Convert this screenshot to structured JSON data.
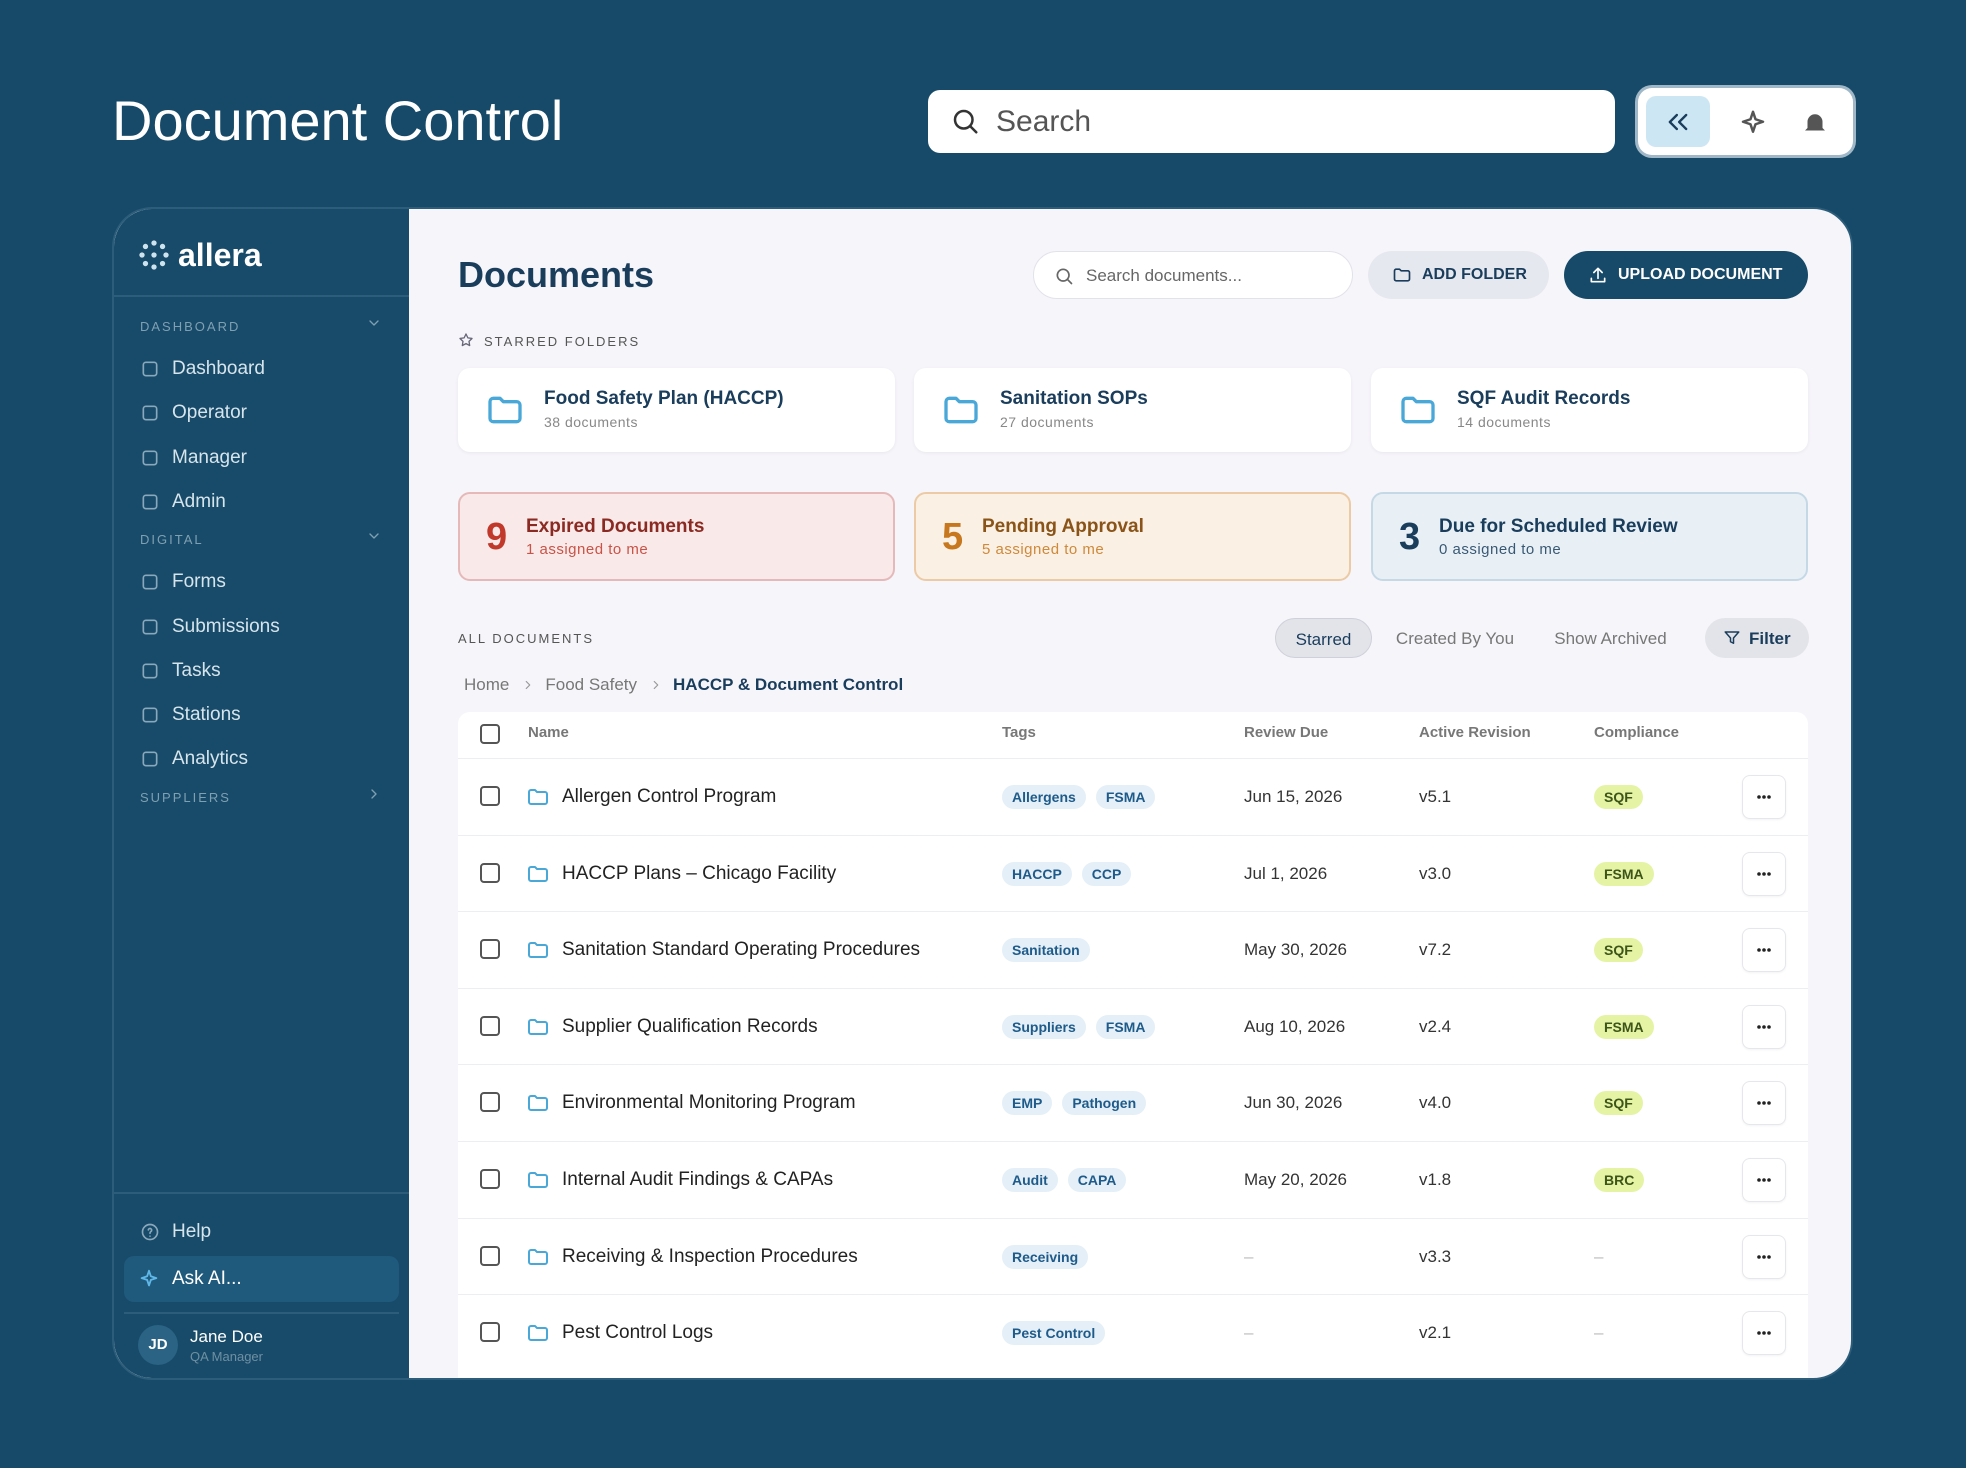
{
  "header": {
    "title": "Document Control",
    "search_placeholder": "Search"
  },
  "sidebar": {
    "brand": "allera",
    "sections": [
      {
        "label": "DASHBOARD",
        "items": [
          "Dashboard",
          "Operator",
          "Manager",
          "Admin"
        ]
      },
      {
        "label": "DIGITAL",
        "items": [
          "Forms",
          "Submissions",
          "Tasks",
          "Stations",
          "Analytics"
        ]
      },
      {
        "label": "SUPPLIERS",
        "items": []
      }
    ],
    "help": "Help",
    "ask_ai": "Ask AI...",
    "user": {
      "initials": "JD",
      "name": "Jane Doe",
      "role": "QA Manager"
    }
  },
  "main": {
    "title": "Documents",
    "search_placeholder": "Search documents...",
    "add_folder": "ADD FOLDER",
    "upload": "UPLOAD DOCUMENT",
    "starred_label": "STARRED FOLDERS",
    "starred": [
      {
        "name": "Food Safety Plan (HACCP)",
        "count": "38 documents"
      },
      {
        "name": "Sanitation SOPs",
        "count": "27 documents"
      },
      {
        "name": "SQF Audit Records",
        "count": "14 documents"
      }
    ],
    "stats": [
      {
        "number": 9,
        "label": "Expired Documents",
        "sub": "1 assigned to me"
      },
      {
        "number": 5,
        "label": "Pending Approval",
        "sub": "5 assigned to me"
      },
      {
        "number": 3,
        "label": "Due for Scheduled Review",
        "sub": "0 assigned to me"
      }
    ],
    "all_label": "ALL DOCUMENTS",
    "tabs": [
      "Starred",
      "Created By You",
      "Show Archived"
    ],
    "filter": "Filter",
    "breadcrumb": [
      "Home",
      "Food Safety",
      "HACCP & Document Control"
    ],
    "table": {
      "columns": [
        "Name",
        "Tags",
        "Review Due",
        "Active Revision",
        "Compliance"
      ],
      "rows": [
        {
          "name": "Allergen Control Program",
          "tags": [
            "Allergens",
            "FSMA"
          ],
          "review_due": "Jun 15, 2026",
          "revision": "v5.1",
          "compliance": "SQF"
        },
        {
          "name": "HACCP Plans – Chicago Facility",
          "tags": [
            "HACCP",
            "CCP"
          ],
          "review_due": "Jul 1, 2026",
          "revision": "v3.0",
          "compliance": "FSMA"
        },
        {
          "name": "Sanitation Standard Operating Procedures",
          "tags": [
            "Sanitation"
          ],
          "review_due": "May 30, 2026",
          "revision": "v7.2",
          "compliance": "SQF"
        },
        {
          "name": "Supplier Qualification Records",
          "tags": [
            "Suppliers",
            "FSMA"
          ],
          "review_due": "Aug 10, 2026",
          "revision": "v2.4",
          "compliance": "FSMA"
        },
        {
          "name": "Environmental Monitoring Program",
          "tags": [
            "EMP",
            "Pathogen"
          ],
          "review_due": "Jun 30, 2026",
          "revision": "v4.0",
          "compliance": "SQF"
        },
        {
          "name": "Internal Audit Findings & CAPAs",
          "tags": [
            "Audit",
            "CAPA"
          ],
          "review_due": "May 20, 2026",
          "revision": "v1.8",
          "compliance": "BRC"
        },
        {
          "name": "Receiving & Inspection Procedures",
          "tags": [
            "Receiving"
          ],
          "review_due": "–",
          "revision": "v3.3",
          "compliance": "–"
        },
        {
          "name": "Pest Control Logs",
          "tags": [
            "Pest Control"
          ],
          "review_due": "–",
          "revision": "v2.1",
          "compliance": "–"
        }
      ]
    }
  }
}
